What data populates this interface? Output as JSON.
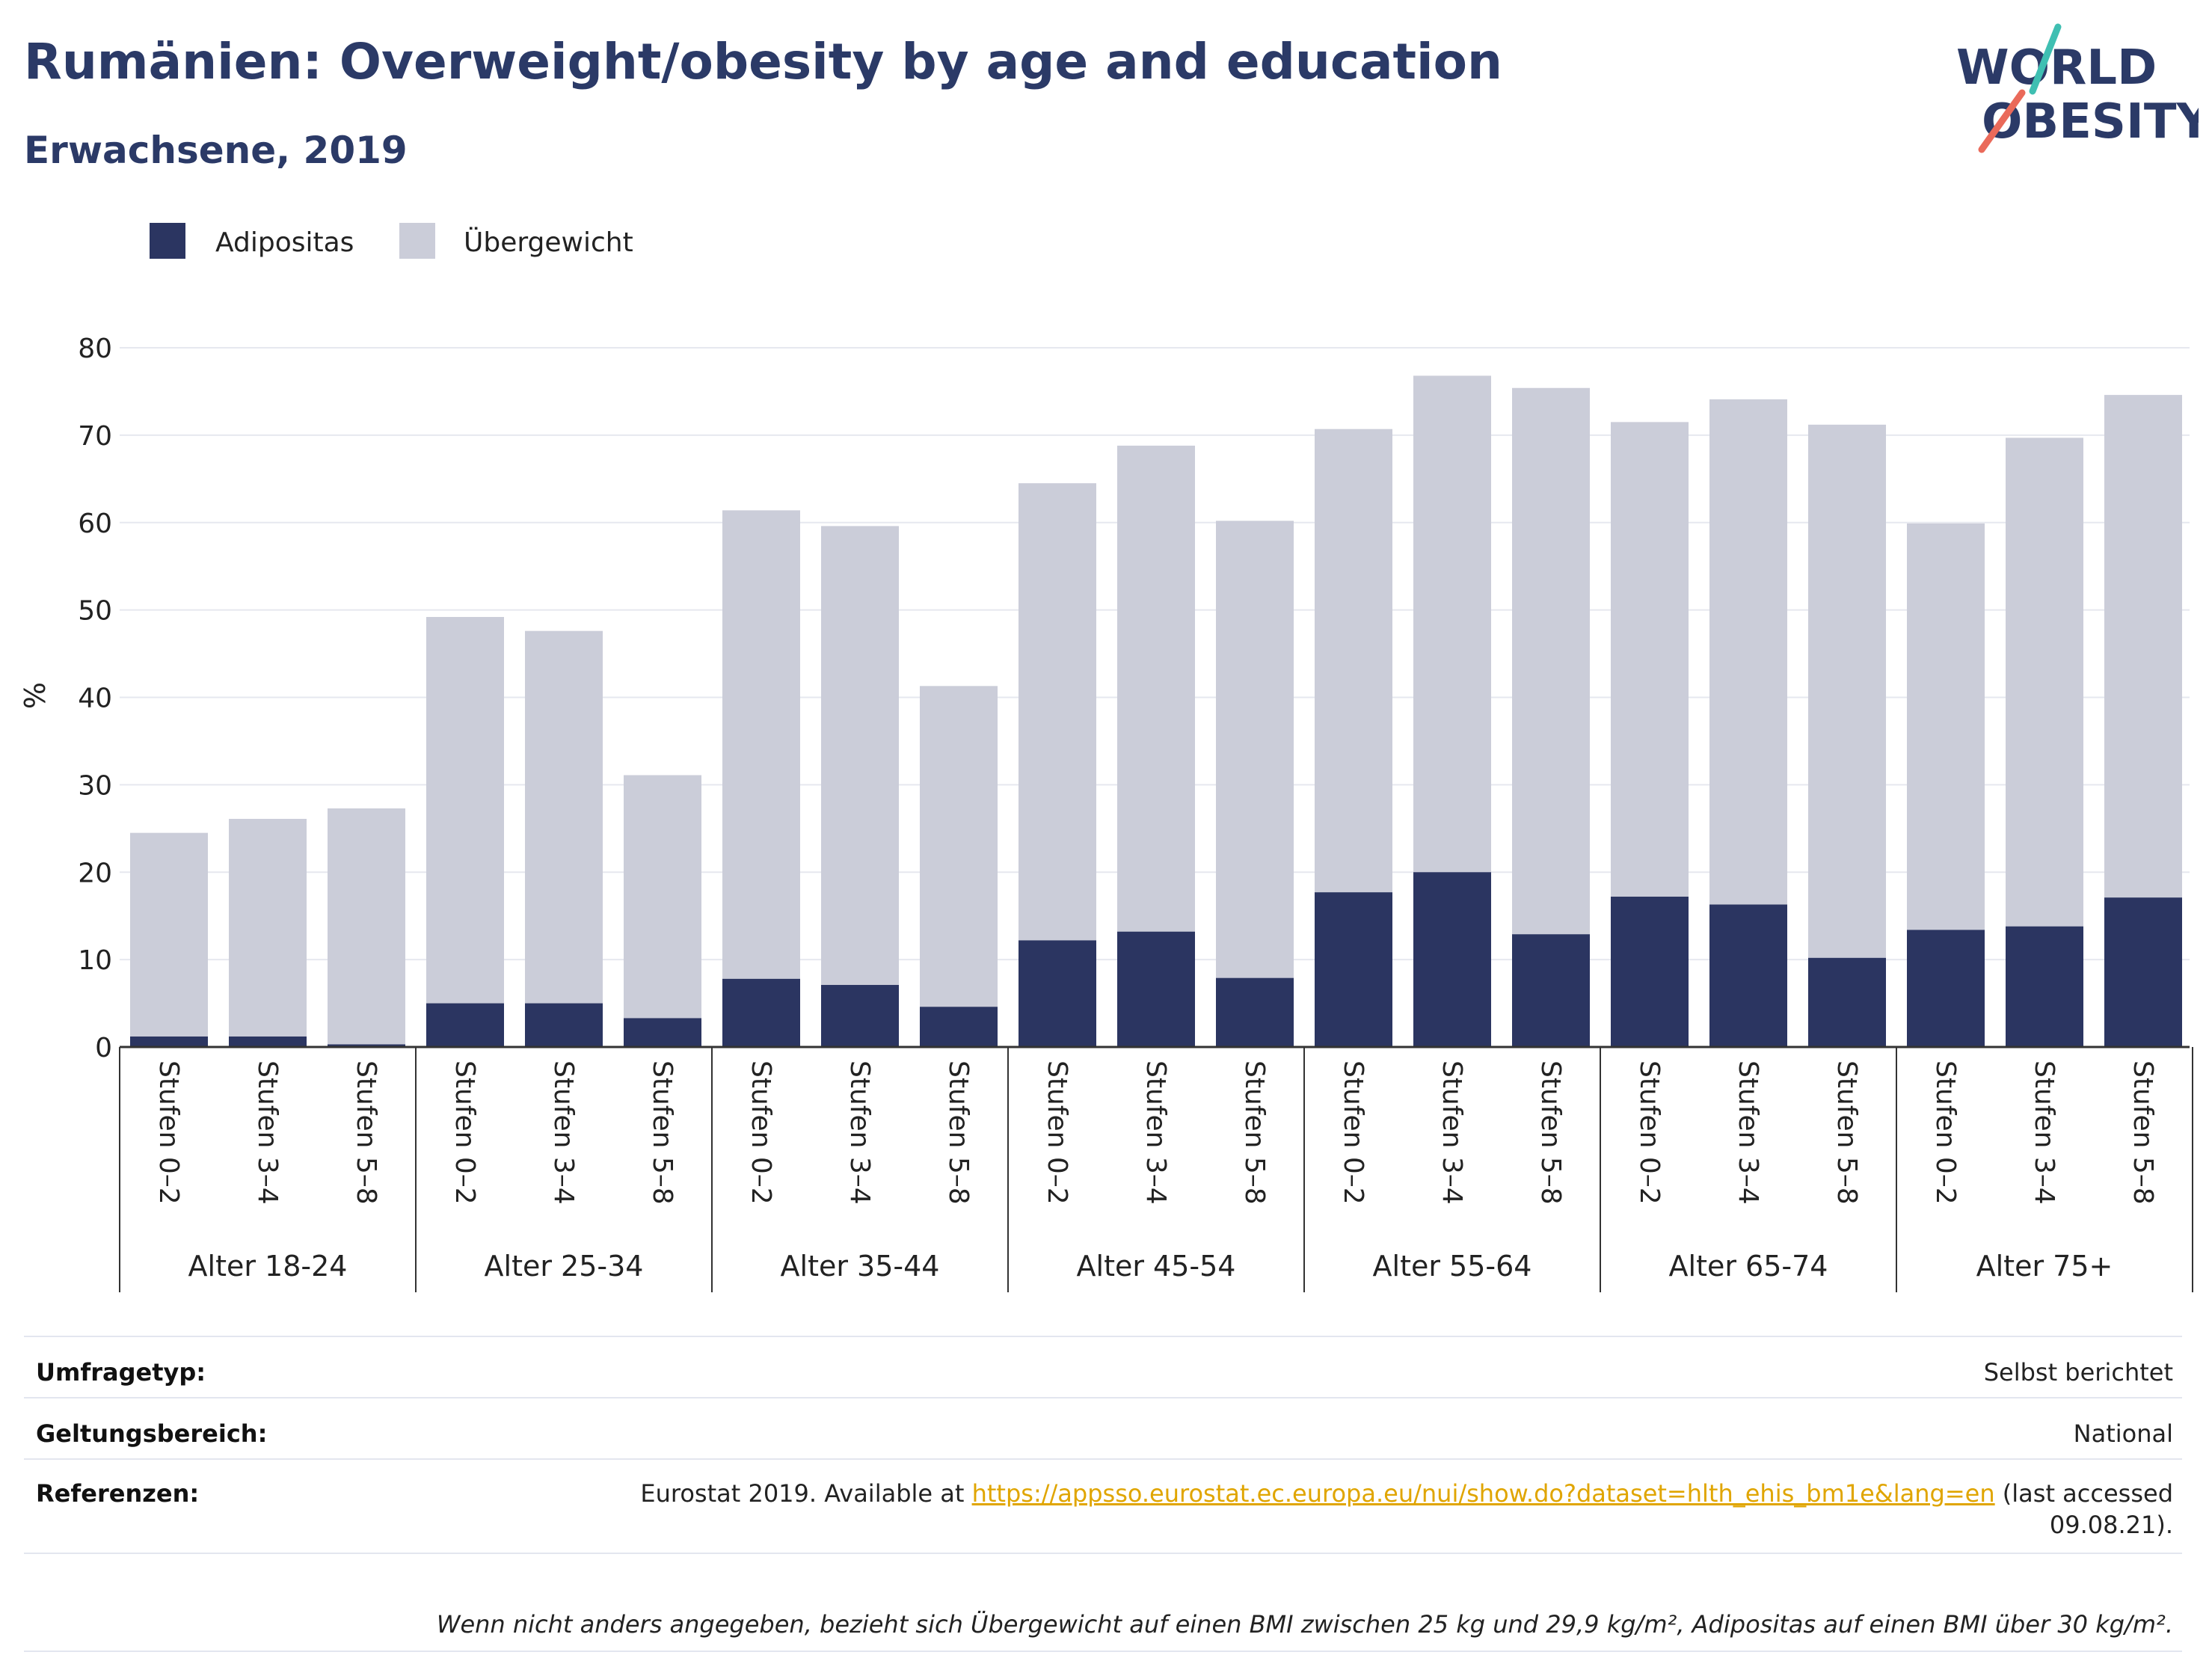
{
  "header": {
    "title": "Rumänien: Overweight/obesity by age and education",
    "subtitle": "Erwachsene, 2019"
  },
  "logo": {
    "line1": "WORLD",
    "line2": "OBESITY"
  },
  "colors": {
    "adipositas": "#2b3561",
    "uebergewicht": "#cbcdd9",
    "title": "#2b3a67",
    "link": "#e0a500"
  },
  "chart_data": {
    "type": "bar",
    "stacked": true,
    "ylabel": "%",
    "ylim": [
      0,
      80
    ],
    "yticks": [
      0,
      10,
      20,
      30,
      40,
      50,
      60,
      70,
      80
    ],
    "grid": true,
    "legend": {
      "placement": "top-left",
      "entries": [
        "Adipositas",
        "Übergewicht"
      ]
    },
    "groups": [
      "Alter 18-24",
      "Alter 25-34",
      "Alter 35-44",
      "Alter 45-54",
      "Alter 55-64",
      "Alter 65-74",
      "Alter 75+"
    ],
    "subcategories": [
      "Stufen 0–2",
      "Stufen 3–4",
      "Stufen 5–8"
    ],
    "series": [
      {
        "name": "Adipositas",
        "values": [
          1.2,
          1.2,
          0.3,
          5.0,
          5.0,
          3.3,
          7.8,
          7.1,
          4.6,
          12.2,
          13.2,
          7.9,
          17.7,
          20.0,
          12.9,
          17.2,
          16.3,
          10.2,
          13.4,
          13.8,
          17.1
        ]
      },
      {
        "name": "Übergewicht",
        "values": [
          23.3,
          24.9,
          27.0,
          44.2,
          42.6,
          27.8,
          53.6,
          52.5,
          36.7,
          52.3,
          55.6,
          52.3,
          53.0,
          56.8,
          62.5,
          54.3,
          57.8,
          61.0,
          46.5,
          55.9,
          57.5
        ]
      }
    ]
  },
  "meta": {
    "survey_type_label": "Umfragetyp:",
    "survey_type_value": "Selbst berichtet",
    "scope_label": "Geltungsbereich:",
    "scope_value": "National",
    "references_label": "Referenzen:",
    "references_prefix": "Eurostat 2019. Available at ",
    "references_link": "https://appsso.eurostat.ec.europa.eu/nui/show.do?dataset=hlth_ehis_bm1e&lang=en",
    "references_suffix": " (last accessed",
    "references_date": "09.08.21).",
    "footnote": "Wenn nicht anders angegeben, bezieht sich Übergewicht auf einen BMI zwischen 25 kg und 29,9 kg/m², Adipositas auf einen BMI über 30 kg/m²."
  }
}
